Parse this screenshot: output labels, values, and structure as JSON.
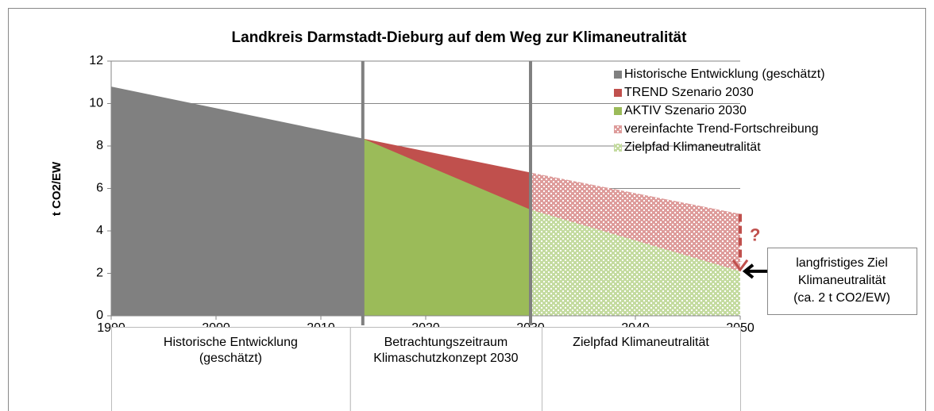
{
  "chart_data": {
    "type": "area",
    "title": "Landkreis Darmstadt-Dieburg auf dem Weg zur Klimaneutralität",
    "ylabel": "t CO2/EW",
    "xlim": [
      1990,
      2050
    ],
    "xticks": [
      1990,
      2000,
      2010,
      2020,
      2030,
      2040,
      2050
    ],
    "ylim": [
      0,
      12
    ],
    "yticks": [
      0,
      2,
      4,
      6,
      8,
      10,
      12
    ],
    "grid": true,
    "legend": "top-right",
    "vlines": [
      2014,
      2030
    ],
    "series": [
      {
        "name": "Historische Entwicklung (geschätzt)",
        "color": "#808080",
        "hatch": false,
        "x": [
          1990,
          2014
        ],
        "values": [
          10.8,
          8.35
        ]
      },
      {
        "name": "TREND Szenario 2030",
        "color": "#c0504d",
        "hatch": false,
        "x": [
          2014,
          2030
        ],
        "values": [
          8.35,
          6.75
        ]
      },
      {
        "name": "AKTIV Szenario 2030",
        "color": "#9bbb59",
        "hatch": false,
        "x": [
          2014,
          2030
        ],
        "values": [
          8.35,
          5.0
        ]
      },
      {
        "name": "vereinfachte Trend-Fortschreibung",
        "color": "#de9c9b",
        "hatch": true,
        "x": [
          2030,
          2050
        ],
        "values": [
          6.75,
          4.8
        ]
      },
      {
        "name": "Zielpfad Klimaneutralität",
        "color": "#c4dba0",
        "hatch": true,
        "x": [
          2030,
          2050
        ],
        "values": [
          5.0,
          2.1
        ]
      }
    ],
    "annotations": {
      "question": "?",
      "target": [
        "langfristiges Ziel",
        "Klimaneutralität",
        "(ca. 2 t CO2/EW)"
      ]
    },
    "periods": [
      [
        "Historische Entwicklung",
        "(geschätzt)"
      ],
      [
        "Betrachtungszeitraum",
        "Klimaschutzkonzept 2030"
      ],
      [
        "Zielpfad Klimaneutralität"
      ]
    ]
  }
}
